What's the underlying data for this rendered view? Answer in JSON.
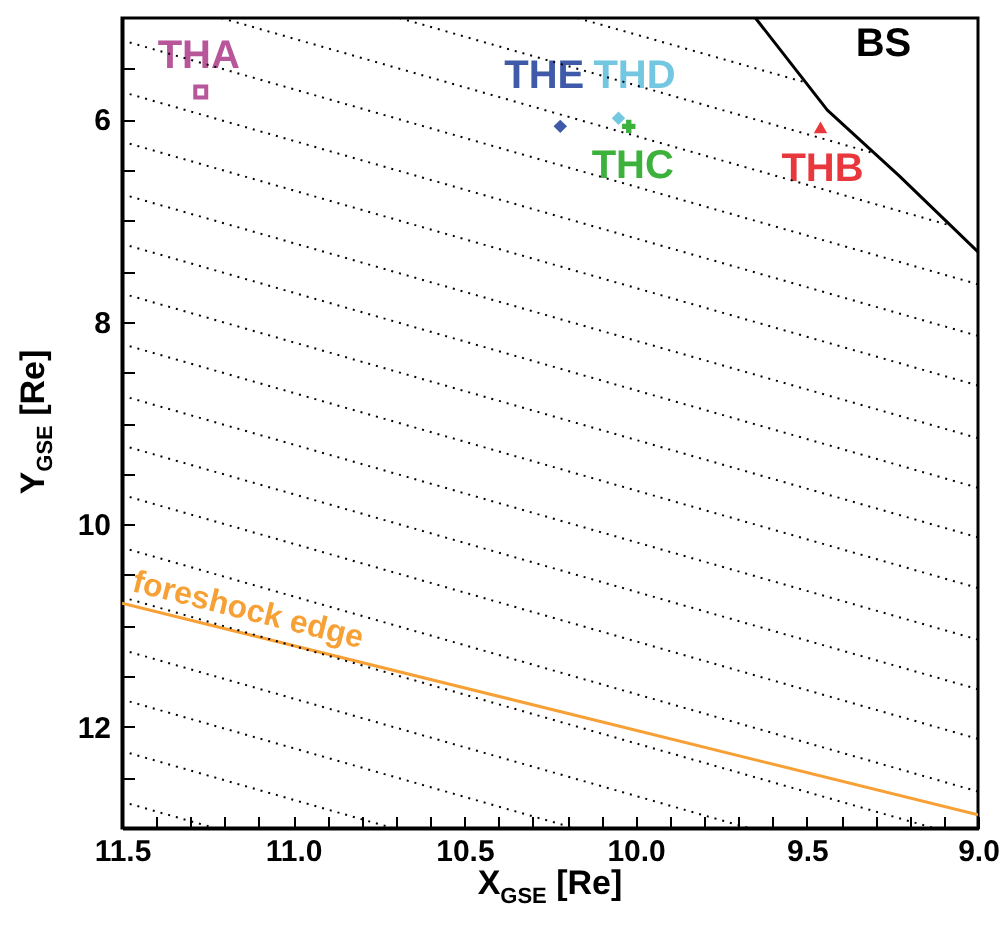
{
  "chart_data": {
    "type": "scatter",
    "xlabel": "X$_{GSE}$ [Re]",
    "ylabel": "Y$_{GSE}$ [Re]",
    "xlim": [
      11.5,
      9.0
    ],
    "ylim": [
      13,
      5
    ],
    "xticks": [
      {
        "value": 11.5,
        "label": "11.5"
      },
      {
        "value": 11.4,
        "label": null
      },
      {
        "value": 11.3,
        "label": null
      },
      {
        "value": 11.2,
        "label": null
      },
      {
        "value": 11.1,
        "label": null
      },
      {
        "value": 11,
        "label": "11.0"
      },
      {
        "value": 10.9,
        "label": null
      },
      {
        "value": 10.8,
        "label": null
      },
      {
        "value": 10.7,
        "label": null
      },
      {
        "value": 10.6,
        "label": null
      },
      {
        "value": 10.5,
        "label": "10.5"
      },
      {
        "value": 10.4,
        "label": null
      },
      {
        "value": 10.3,
        "label": null
      },
      {
        "value": 10.2,
        "label": null
      },
      {
        "value": 10.1,
        "label": null
      },
      {
        "value": 10,
        "label": "10.0"
      },
      {
        "value": 9.9,
        "label": null
      },
      {
        "value": 9.8,
        "label": null
      },
      {
        "value": 9.7,
        "label": null
      },
      {
        "value": 9.6,
        "label": null
      },
      {
        "value": 9.5,
        "label": "9.5"
      },
      {
        "value": 9.4,
        "label": null
      },
      {
        "value": 9.3,
        "label": null
      },
      {
        "value": 9.2,
        "label": null
      },
      {
        "value": 9.1,
        "label": null
      },
      {
        "value": 9,
        "label": "9.0"
      }
    ],
    "yticks": [
      {
        "value": 5.5,
        "label": null
      },
      6,
      {
        "value": 6.5,
        "label": null
      },
      {
        "value": 7,
        "label": null
      },
      {
        "value": 7.5,
        "label": null
      },
      8,
      {
        "value": 8.5,
        "label": null
      },
      {
        "value": 9,
        "label": null
      },
      {
        "value": 9.5,
        "label": null
      },
      10,
      {
        "value": 10.5,
        "label": null
      },
      {
        "value": 11,
        "label": null
      },
      {
        "value": 11.5,
        "label": null
      },
      12,
      {
        "value": 12.5,
        "label": null
      }
    ],
    "grid": false,
    "series": [
      {
        "name": "THA",
        "type": "scatter",
        "marker": "square",
        "color": "#b8569a",
        "x": [
          11.27
        ],
        "values": [
          5.73
        ]
      },
      {
        "name": "THE",
        "type": "scatter",
        "marker": "diamond",
        "color": "#3f5aa8",
        "x": [
          10.22
        ],
        "values": [
          6.07
        ]
      },
      {
        "name": "THD",
        "type": "scatter",
        "marker": "diamond",
        "color": "#74c7e0",
        "x": [
          10.05
        ],
        "values": [
          5.99
        ]
      },
      {
        "name": "THC",
        "type": "scatter",
        "marker": "cross",
        "color": "#3cb13c",
        "x": [
          10.02
        ],
        "values": [
          6.07
        ]
      },
      {
        "name": "THB",
        "type": "scatter",
        "marker": "triangle",
        "color": "#e8383d",
        "x": [
          9.46
        ],
        "values": [
          6.08
        ]
      },
      {
        "name": "BS",
        "type": "line",
        "line_style": "solid",
        "color": "#000000",
        "x": [
          9.65,
          9.44,
          9.23,
          9.0
        ],
        "values": [
          5.0,
          5.91,
          6.56,
          7.31
        ]
      },
      {
        "name": "foreshock edge",
        "type": "line",
        "line_style": "solid",
        "color": "#f7a035",
        "x": [
          11.5,
          9.0
        ],
        "values": [
          10.78,
          12.87
        ]
      },
      {
        "type": "line",
        "line_style": "dotted",
        "color": "#000000",
        "x": [
          11.5,
          9.0
        ],
        "values": [
          5.22,
          7.63
        ]
      },
      {
        "type": "line",
        "line_style": "dotted",
        "color": "#000000",
        "x": [
          11.5,
          9.0
        ],
        "values": [
          5.73,
          8.14
        ]
      },
      {
        "type": "line",
        "line_style": "dotted",
        "color": "#000000",
        "x": [
          11.5,
          9.0
        ],
        "values": [
          6.22,
          8.63
        ]
      },
      {
        "type": "line",
        "line_style": "dotted",
        "color": "#000000",
        "x": [
          11.5,
          9.0
        ],
        "values": [
          6.74,
          9.15
        ]
      },
      {
        "type": "line",
        "line_style": "dotted",
        "color": "#000000",
        "x": [
          11.5,
          9.0
        ],
        "values": [
          7.23,
          9.64
        ]
      },
      {
        "type": "line",
        "line_style": "dotted",
        "color": "#000000",
        "x": [
          11.5,
          9.0
        ],
        "values": [
          7.72,
          10.13
        ]
      },
      {
        "type": "line",
        "line_style": "dotted",
        "color": "#000000",
        "x": [
          11.5,
          9.0
        ],
        "values": [
          8.22,
          10.63
        ]
      },
      {
        "type": "line",
        "line_style": "dotted",
        "color": "#000000",
        "x": [
          11.5,
          9.0
        ],
        "values": [
          8.73,
          11.14
        ]
      },
      {
        "type": "line",
        "line_style": "dotted",
        "color": "#000000",
        "x": [
          11.5,
          9.0
        ],
        "values": [
          9.22,
          11.63
        ]
      },
      {
        "type": "line",
        "line_style": "dotted",
        "color": "#000000",
        "x": [
          11.5,
          9.0
        ],
        "values": [
          9.71,
          12.12
        ]
      },
      {
        "type": "line",
        "line_style": "dotted",
        "color": "#000000",
        "x": [
          11.5,
          9.0
        ],
        "values": [
          10.23,
          12.64
        ]
      },
      {
        "type": "line",
        "line_style": "dotted",
        "color": "#000000",
        "x": [
          11.5,
          9.13
        ],
        "values": [
          10.72,
          13
        ]
      },
      {
        "type": "line",
        "line_style": "dotted",
        "color": "#000000",
        "x": [
          11.5,
          9.67
        ],
        "values": [
          11.24,
          13
        ]
      },
      {
        "type": "line",
        "line_style": "dotted",
        "color": "#000000",
        "x": [
          11.5,
          10.18
        ],
        "values": [
          11.73,
          13
        ]
      },
      {
        "type": "line",
        "line_style": "dotted",
        "color": "#000000",
        "x": [
          11.5,
          10.71
        ],
        "values": [
          12.24,
          13
        ]
      },
      {
        "type": "line",
        "line_style": "dotted",
        "color": "#000000",
        "x": [
          11.5,
          11.23
        ],
        "values": [
          12.74,
          13
        ]
      },
      {
        "type": "line",
        "line_style": "dotted",
        "color": "#000000",
        "x": [
          11.21,
          9.08
        ],
        "values": [
          5,
          7.05
        ]
      },
      {
        "type": "line",
        "line_style": "dotted",
        "color": "#000000",
        "x": [
          10.69,
          9.31
        ],
        "values": [
          5,
          6.33
        ]
      },
      {
        "type": "line",
        "line_style": "dotted",
        "color": "#000000",
        "x": [
          10.17,
          9.5
        ],
        "values": [
          5,
          5.64
        ]
      }
    ]
  }
}
